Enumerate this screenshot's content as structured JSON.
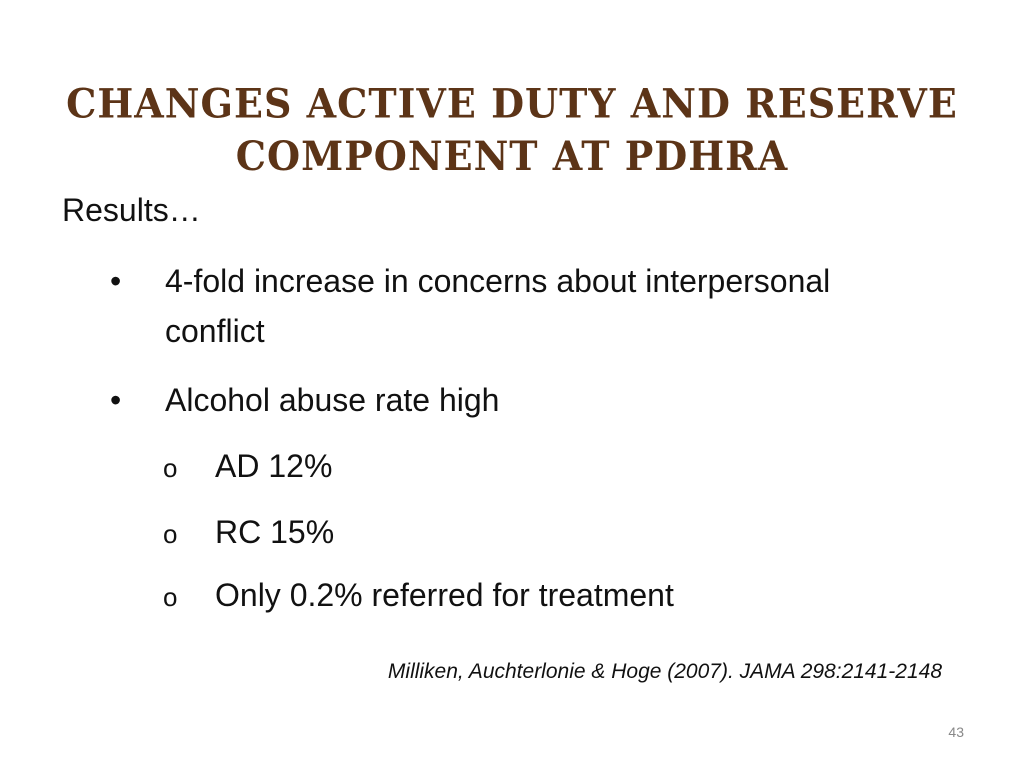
{
  "slide": {
    "title_line1": "Changes  Active  Duty  and Reserve",
    "title_line2": "Component at  PDHRA",
    "intro": "Results…",
    "bullets": [
      {
        "mark": "•",
        "text": "4-fold increase in concerns about interpersonal conflict"
      },
      {
        "mark": "•",
        "text": "Alcohol abuse rate high"
      }
    ],
    "sub_bullets": [
      {
        "mark": "o",
        "text": "AD 12%"
      },
      {
        "mark": "o",
        "text": "RC 15%"
      },
      {
        "mark": "o",
        "text": "Only 0.2% referred for treatment"
      }
    ],
    "citation": "Milliken, Auchterlonie & Hoge (2007). JAMA 298:2141-2148",
    "page_number": "43",
    "colors": {
      "title": "#5c3417",
      "text": "#111111"
    }
  }
}
